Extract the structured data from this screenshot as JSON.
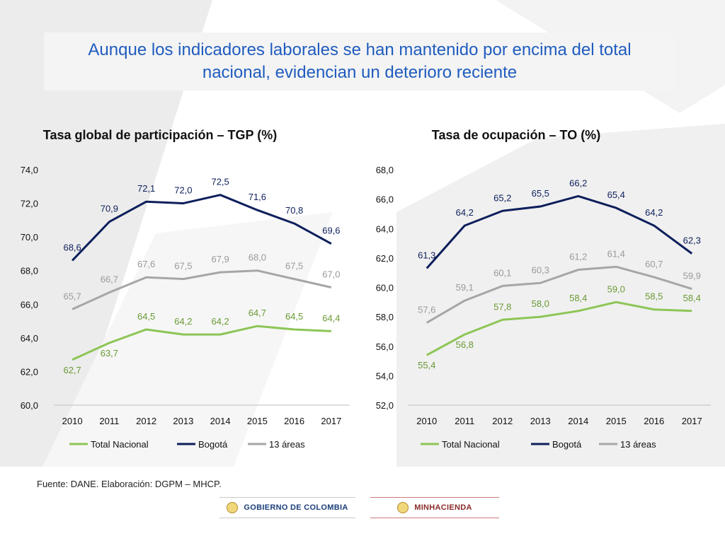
{
  "slide_title": "Aunque los indicadores laborales se han mantenido por encima del total nacional, evidencian un deterioro reciente",
  "source": "Fuente: DANE. Elaboración: DGPM – MHCP.",
  "logos": {
    "gobierno": "GOBIERNO DE COLOMBIA",
    "minhacienda": "MINHACIENDA"
  },
  "colors": {
    "title": "#1f5cbf",
    "total_nacional": "#8dc556",
    "bogota": "#0d1f5c",
    "areas": "#a6a6a6"
  },
  "chart_data": [
    {
      "type": "line",
      "title": "Tasa global de participación – TGP (%)",
      "categories": [
        "2010",
        "2011",
        "2012",
        "2013",
        "2014",
        "2015",
        "2016",
        "2017"
      ],
      "ylim": [
        60,
        74
      ],
      "yticks": [
        "60,0",
        "62,0",
        "64,0",
        "66,0",
        "68,0",
        "70,0",
        "72,0",
        "74,0"
      ],
      "ytick_values": [
        60,
        62,
        64,
        66,
        68,
        70,
        72,
        74
      ],
      "legend_position": "bottom",
      "series": [
        {
          "name": "Total Nacional",
          "key": "total_nacional",
          "values": [
            62.7,
            63.7,
            64.5,
            64.2,
            64.2,
            64.7,
            64.5,
            64.4
          ],
          "labels": [
            "62,7",
            "63,7",
            "64,5",
            "64,2",
            "64,2",
            "64,7",
            "64,5",
            "64,4"
          ]
        },
        {
          "name": "Bogotá",
          "key": "bogota",
          "values": [
            68.6,
            70.9,
            72.1,
            72.0,
            72.5,
            71.6,
            70.8,
            69.6
          ],
          "labels": [
            "68,6",
            "70,9",
            "72,1",
            "72,0",
            "72,5",
            "71,6",
            "70,8",
            "69,6"
          ]
        },
        {
          "name": "13 áreas",
          "key": "areas",
          "values": [
            65.7,
            66.7,
            67.6,
            67.5,
            67.9,
            68.0,
            67.5,
            67.0
          ],
          "labels": [
            "65,7",
            "66,7",
            "67,6",
            "67,5",
            "67,9",
            "68,0",
            "67,5",
            "67,0"
          ]
        }
      ]
    },
    {
      "type": "line",
      "title": "Tasa de ocupación – TO (%)",
      "categories": [
        "2010",
        "2011",
        "2012",
        "2013",
        "2014",
        "2015",
        "2016",
        "2017"
      ],
      "ylim": [
        52,
        68
      ],
      "yticks": [
        "52,0",
        "54,0",
        "56,0",
        "58,0",
        "60,0",
        "62,0",
        "64,0",
        "66,0",
        "68,0"
      ],
      "ytick_values": [
        52,
        54,
        56,
        58,
        60,
        62,
        64,
        66,
        68
      ],
      "legend_position": "bottom",
      "series": [
        {
          "name": "Total Nacional",
          "key": "total_nacional",
          "values": [
            55.4,
            56.8,
            57.8,
            58.0,
            58.4,
            59.0,
            58.5,
            58.4
          ],
          "labels": [
            "55,4",
            "56,8",
            "57,8",
            "58,0",
            "58,4",
            "59,0",
            "58,5",
            "58,4"
          ]
        },
        {
          "name": "Bogotá",
          "key": "bogota",
          "values": [
            61.3,
            64.2,
            65.2,
            65.5,
            66.2,
            65.4,
            64.2,
            62.3
          ],
          "labels": [
            "61,3",
            "64,2",
            "65,2",
            "65,5",
            "66,2",
            "65,4",
            "64,2",
            "62,3"
          ]
        },
        {
          "name": "13 áreas",
          "key": "areas",
          "values": [
            57.6,
            59.1,
            60.1,
            60.3,
            61.2,
            61.4,
            60.7,
            59.9
          ],
          "labels": [
            "57,6",
            "59,1",
            "60,1",
            "60,3",
            "61,2",
            "61,4",
            "60,7",
            "59,9"
          ]
        }
      ]
    }
  ]
}
